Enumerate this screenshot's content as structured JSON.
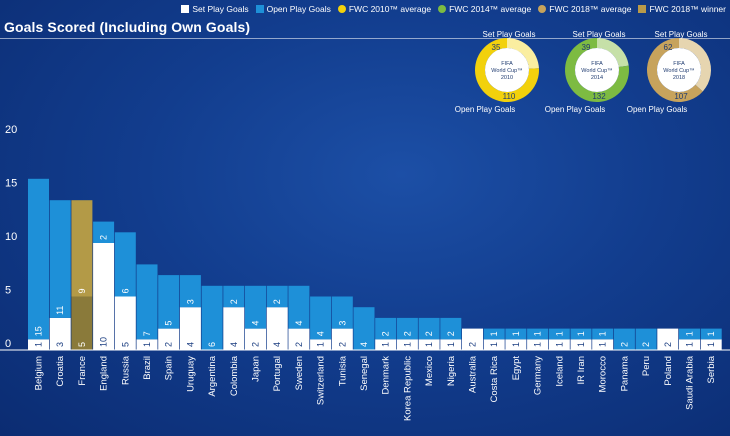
{
  "legend": [
    {
      "label": "Set Play Goals",
      "kind": "swatch",
      "color": "#ffffff"
    },
    {
      "label": "Open Play Goals",
      "kind": "swatch",
      "color": "#1e90d8"
    },
    {
      "label": "FWC 2010™ average",
      "kind": "dot",
      "color": "#f2d10c"
    },
    {
      "label": "FWC 2014™ average",
      "kind": "dot",
      "color": "#7dbb42"
    },
    {
      "label": "FWC 2018™ average",
      "kind": "dot",
      "color": "#c7a35c"
    },
    {
      "label": "FWC 2018™ winner",
      "kind": "swatch",
      "color": "#b99a4a"
    }
  ],
  "title": "Goals Scored (Including Own Goals)",
  "colors": {
    "set_play": "#ffffff",
    "open_play": "#1e90d8",
    "winner_open": "#b39a47",
    "winner_set": "#8a7a3a",
    "label_on_blue": "#ffffff",
    "label_on_white": "#1a3d80"
  },
  "donuts": [
    {
      "top_label": "Set Play Goals",
      "bottom_label": "Open Play Goals",
      "center_lines": [
        "FIFA",
        "World Cup™",
        "2010"
      ],
      "set": 35,
      "open": 110,
      "color": "#f2d10c",
      "light": "#faeea0"
    },
    {
      "top_label": "Set Play Goals",
      "bottom_label": "Open Play Goals",
      "center_lines": [
        "FIFA",
        "World Cup™",
        "2014"
      ],
      "set": 39,
      "open": 132,
      "color": "#7dbb42",
      "light": "#c6e0a8"
    },
    {
      "top_label": "Set Play Goals",
      "bottom_label": "Open Play Goals",
      "center_lines": [
        "FIFA",
        "World Cup™",
        "2018"
      ],
      "set": 62,
      "open": 107,
      "color": "#c7a35c",
      "light": "#e6d5b0"
    }
  ],
  "chart_data": {
    "type": "bar",
    "stacked": true,
    "ylim": [
      0,
      20
    ],
    "yticks": [
      0,
      5,
      10,
      15,
      20
    ],
    "categories": [
      "Belgium",
      "Croatia",
      "France",
      "England",
      "Russia",
      "Brazil",
      "Spain",
      "Uruguay",
      "Argentina",
      "Colombia",
      "Japan",
      "Portugal",
      "Sweden",
      "Switzerland",
      "Tunisia",
      "Senegal",
      "Denmark",
      "Korea Republic",
      "Mexico",
      "Nigeria",
      "Australia",
      "Costa Rica",
      "Egypt",
      "Germany",
      "Iceland",
      "IR Iran",
      "Morocco",
      "Panama",
      "Peru",
      "Poland",
      "Saudi Arabia",
      "Serbia"
    ],
    "winner": "France",
    "series": [
      {
        "name": "Set Play Goals",
        "values": [
          1,
          3,
          5,
          10,
          5,
          1,
          2,
          4,
          0,
          4,
          2,
          4,
          2,
          1,
          2,
          0,
          1,
          1,
          1,
          1,
          2,
          1,
          1,
          1,
          1,
          1,
          1,
          0,
          0,
          2,
          1,
          1
        ]
      },
      {
        "name": "Open Play Goals",
        "values": [
          15,
          11,
          9,
          2,
          6,
          7,
          5,
          3,
          6,
          2,
          4,
          2,
          4,
          4,
          3,
          4,
          2,
          2,
          2,
          2,
          0,
          1,
          1,
          1,
          1,
          1,
          1,
          2,
          2,
          0,
          1,
          1
        ]
      }
    ]
  }
}
